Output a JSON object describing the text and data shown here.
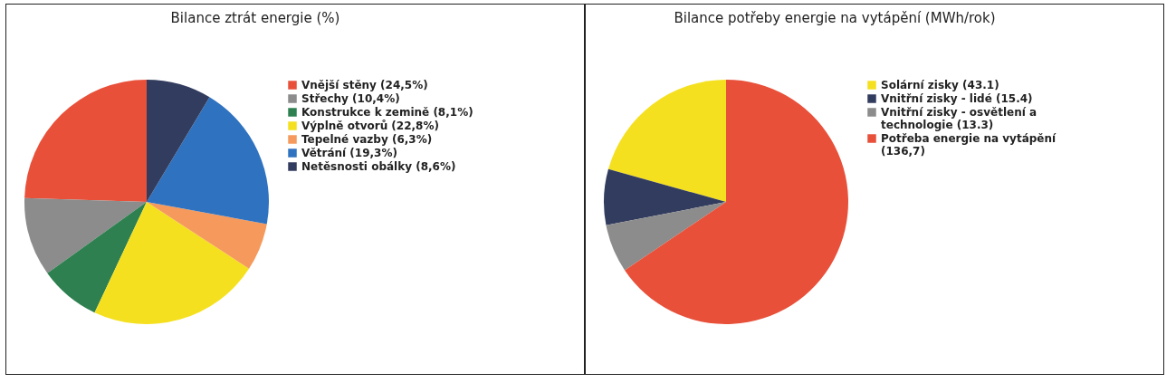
{
  "chart_data": [
    {
      "type": "pie",
      "title": "Bilance ztrát energie (%)",
      "legend": "right",
      "categories": [
        "Vnější stěny (24,5%)",
        "Střechy (10,4%)",
        "Konstrukce k zemině (8,1%)",
        "Výplně otvorů (22,8%)",
        "Tepelné vazby (6,3%)",
        "Větrání (19,3%)",
        "Netěsnosti obálky (8,6%)"
      ],
      "values": [
        24.5,
        10.4,
        8.1,
        22.8,
        6.3,
        19.3,
        8.6
      ],
      "colors": [
        "#e8503a",
        "#8c8c8c",
        "#2e8050",
        "#f5e020",
        "#f59a5c",
        "#2f72c0",
        "#323c5e"
      ]
    },
    {
      "type": "pie",
      "title": "Bilance potřeby energie na vytápění (MWh/rok)",
      "legend": "right",
      "categories": [
        "Solární zisky (43.1)",
        "Vnitřní zisky - lidé (15.4)",
        "Vnitřní zisky - osvětlení a technologie (13.3)",
        "Potřeba energie na vytápění (136,7)"
      ],
      "values": [
        43.1,
        15.4,
        13.3,
        136.7
      ],
      "colors": [
        "#f5e020",
        "#323c5e",
        "#8c8c8c",
        "#e8503a"
      ]
    }
  ]
}
